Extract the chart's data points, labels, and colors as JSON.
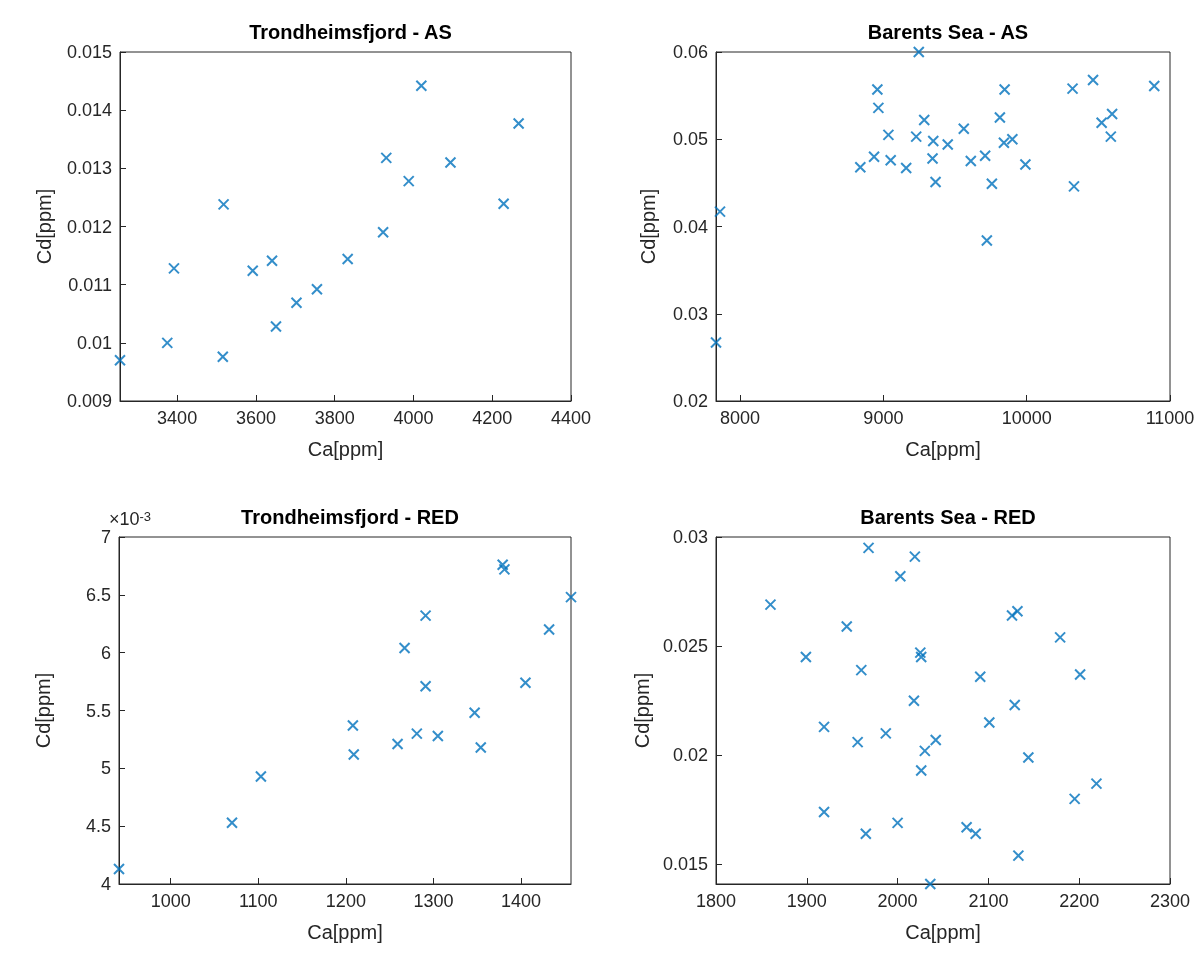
{
  "chart_data": [
    {
      "type": "scatter",
      "title": "Trondheimsfjord - AS",
      "xlabel": "Ca[ppm]",
      "ylabel": "Cd[ppm]",
      "marker": "cross",
      "x": [
        3255,
        3375,
        3392,
        3516,
        3518,
        3592,
        3641,
        3651,
        3703,
        3755,
        3833,
        3923,
        3931,
        3988,
        4020,
        4094,
        4229,
        4267
      ],
      "series": [
        {
          "color": "#0072bd",
          "values": [
            0.0097,
            0.01,
            0.01128,
            0.00976,
            0.01238,
            0.01124,
            0.01141,
            0.01028,
            0.01069,
            0.01092,
            0.01144,
            0.0119,
            0.01318,
            0.01278,
            0.01442,
            0.0131,
            0.01239,
            0.01377
          ]
        }
      ],
      "xlim": [
        3255,
        4400
      ],
      "xticks": [
        3400,
        3600,
        3800,
        4000,
        4200,
        4400
      ],
      "ylim": [
        0.009,
        0.015
      ],
      "yticks": [
        0.009,
        0.01,
        0.011,
        0.012,
        0.013,
        0.014,
        0.015
      ]
    },
    {
      "type": "scatter",
      "title": "Barents Sea - AS",
      "xlabel": "Ca[ppm]",
      "ylabel": "Cd[ppm]",
      "marker": "cross",
      "x": [
        7832,
        7860,
        8839,
        8935,
        8958,
        8965,
        9035,
        9051,
        9159,
        9229,
        9247,
        9285,
        9348,
        9343,
        9364,
        9449,
        9561,
        9610,
        9710,
        9722,
        9757,
        9813,
        9846,
        9841,
        9900,
        9991,
        10320,
        10330,
        10463,
        10523,
        10587,
        10596,
        10890
      ],
      "series": [
        {
          "color": "#0072bd",
          "values": [
            0.0267,
            0.0417,
            0.0468,
            0.048,
            0.0557,
            0.0536,
            0.0505,
            0.0476,
            0.0467,
            0.0503,
            0.06,
            0.0522,
            0.0498,
            0.0478,
            0.0451,
            0.0494,
            0.0512,
            0.0475,
            0.0481,
            0.0384,
            0.0449,
            0.0525,
            0.0557,
            0.0496,
            0.05,
            0.0471,
            0.0558,
            0.0446,
            0.0568,
            0.0519,
            0.0503,
            0.0529,
            0.0561
          ]
        }
      ],
      "xlim": [
        7832,
        11000
      ],
      "xticks": [
        8000,
        9000,
        10000,
        11000
      ],
      "ylim": [
        0.02,
        0.06
      ],
      "yticks": [
        0.02,
        0.03,
        0.04,
        0.05,
        0.06
      ]
    },
    {
      "type": "scatter",
      "title": "Trondheimsfjord - RED",
      "xlabel": "Ca[ppm]",
      "ylabel": "Cd[ppm]",
      "marker": "cross",
      "annotations": [
        "×10$^{-3}$"
      ],
      "x": [
        941,
        1070,
        1103,
        1208,
        1209,
        1259,
        1267,
        1281,
        1291,
        1291,
        1305,
        1347,
        1354,
        1379,
        1381,
        1405,
        1432,
        1457
      ],
      "series": [
        {
          "color": "#0072bd",
          "values": [
            4.13,
            4.53,
            4.93,
            5.37,
            5.12,
            5.21,
            6.04,
            5.3,
            6.32,
            5.71,
            5.28,
            5.48,
            5.18,
            6.76,
            6.72,
            5.74,
            6.2,
            6.48
          ]
        }
      ],
      "xlim": [
        941,
        1457
      ],
      "xticks": [
        1000,
        1100,
        1200,
        1300,
        1400
      ],
      "ylim": [
        4,
        7
      ],
      "yticks": [
        4,
        4.5,
        5,
        5.5,
        6,
        6.5,
        7
      ]
    },
    {
      "type": "scatter",
      "title": "Barents Sea - RED",
      "xlabel": "Ca[ppm]",
      "ylabel": "Cd[ppm]",
      "marker": "cross",
      "x": [
        1860,
        1899,
        1919,
        1919,
        1944,
        1956,
        1960,
        1965,
        1968,
        1987,
        2000,
        2003,
        2018,
        2019,
        2025,
        2026,
        2026,
        2030,
        2036,
        2042,
        2076,
        2086,
        2091,
        2101,
        2126,
        2132,
        2129,
        2133,
        2144,
        2179,
        2195,
        2201,
        2219
      ],
      "series": [
        {
          "color": "#0072bd",
          "values": [
            0.0269,
            0.0245,
            0.0213,
            0.0174,
            0.0259,
            0.0206,
            0.0239,
            0.0164,
            0.0295,
            0.021,
            0.0169,
            0.0282,
            0.0225,
            0.0291,
            0.0247,
            0.0245,
            0.0193,
            0.0202,
            0.0141,
            0.0207,
            0.0167,
            0.0164,
            0.0236,
            0.0215,
            0.0264,
            0.0266,
            0.0223,
            0.0154,
            0.0199,
            0.0254,
            0.018,
            0.0237,
            0.0187
          ]
        }
      ],
      "xlim": [
        1800,
        2300
      ],
      "xticks": [
        1800,
        1900,
        2000,
        2100,
        2200,
        2300
      ],
      "ylim": [
        0.0141,
        0.03
      ],
      "yticks": [
        0.015,
        0.02,
        0.025,
        0.03
      ]
    }
  ]
}
